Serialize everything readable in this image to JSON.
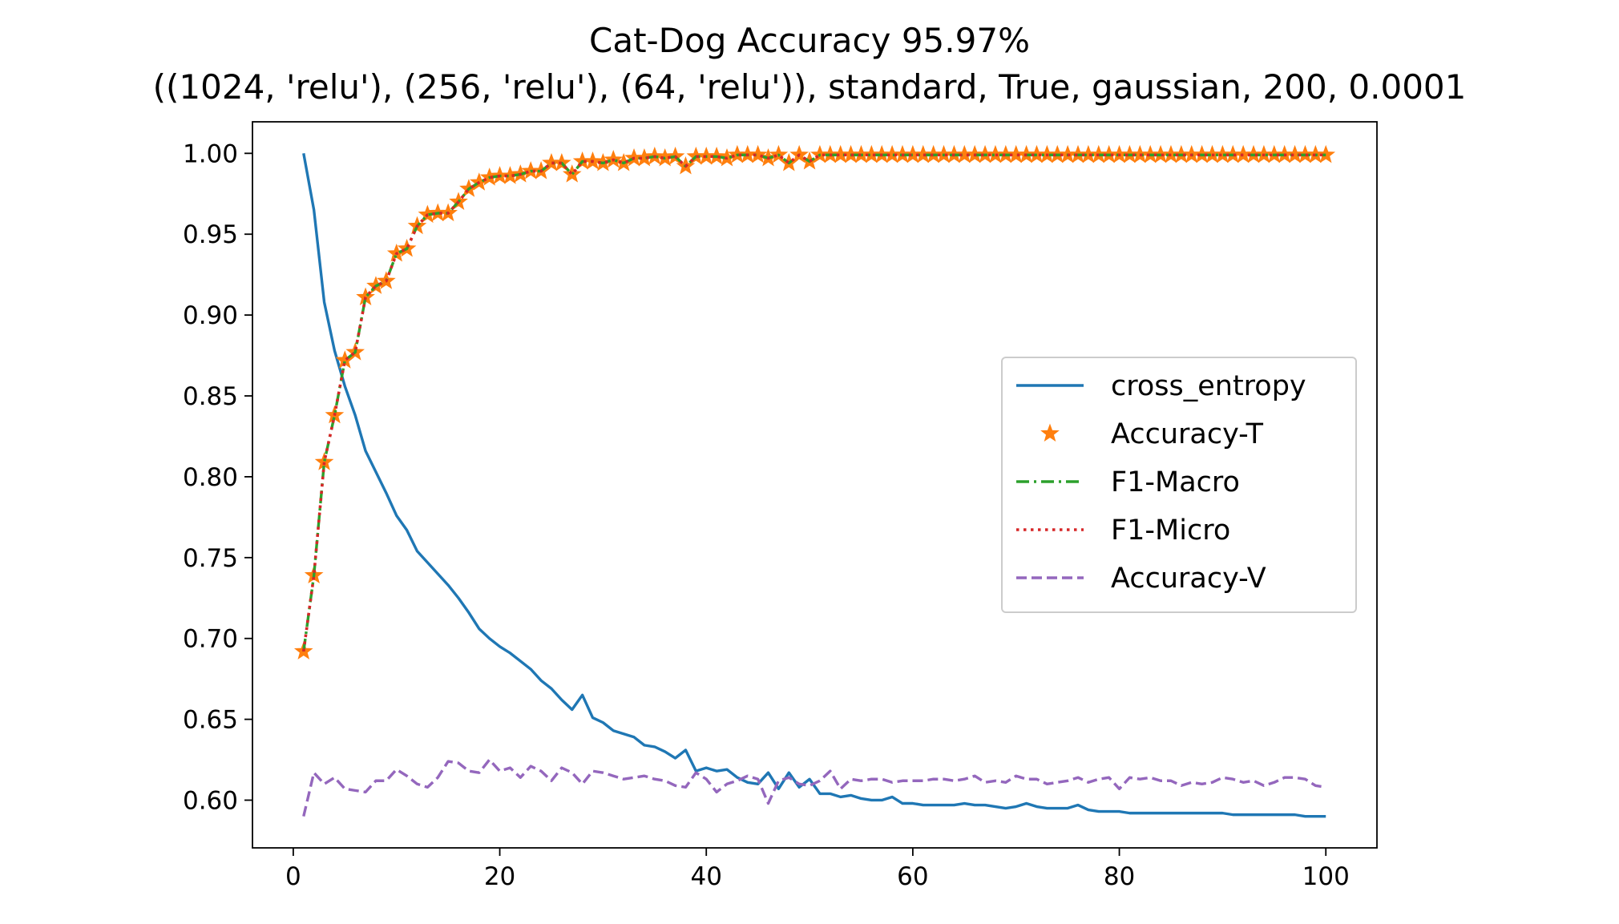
{
  "chart_data": {
    "type": "line",
    "title": "Cat-Dog Accuracy 95.97%",
    "subtitle": "((1024, 'relu'), (256, 'relu'), (64, 'relu')), standard, True, gaussian, 200, 0.0001",
    "xlabel": "",
    "ylabel": "",
    "xlim": [
      -3.95,
      104.95
    ],
    "ylim": [
      0.5705,
      1.0195
    ],
    "xticks": [
      0,
      20,
      40,
      60,
      80,
      100
    ],
    "yticks": [
      0.6,
      0.65,
      0.7,
      0.75,
      0.8,
      0.85,
      0.9,
      0.95,
      1.0
    ],
    "grid": false,
    "legend_position": "center-right",
    "colors": {
      "cross_entropy": "#1f77b4",
      "accuracy_t": "#ff7f0e",
      "f1_macro": "#2ca02c",
      "f1_micro": "#d62728",
      "accuracy_v": "#9467bd"
    },
    "series": [
      {
        "name": "cross_entropy",
        "values": [
          1.0,
          0.965,
          0.908,
          0.878,
          0.856,
          0.838,
          0.816,
          0.803,
          0.79,
          0.776,
          0.767,
          0.754,
          0.747,
          0.74,
          0.733,
          0.725,
          0.716,
          0.706,
          0.7,
          0.695,
          0.691,
          0.686,
          0.681,
          0.674,
          0.669,
          0.662,
          0.656,
          0.665,
          0.651,
          0.648,
          0.643,
          0.641,
          0.639,
          0.634,
          0.633,
          0.63,
          0.626,
          0.631,
          0.618,
          0.62,
          0.618,
          0.619,
          0.614,
          0.611,
          0.61,
          0.617,
          0.607,
          0.617,
          0.608,
          0.613,
          0.604,
          0.604,
          0.602,
          0.603,
          0.601,
          0.6,
          0.6,
          0.602,
          0.598,
          0.598,
          0.597,
          0.597,
          0.597,
          0.597,
          0.598,
          0.597,
          0.597,
          0.596,
          0.595,
          0.596,
          0.598,
          0.596,
          0.595,
          0.595,
          0.595,
          0.597,
          0.594,
          0.593,
          0.593,
          0.593,
          0.592,
          0.592,
          0.592,
          0.592,
          0.592,
          0.592,
          0.592,
          0.592,
          0.592,
          0.592,
          0.591,
          0.591,
          0.591,
          0.591,
          0.591,
          0.591,
          0.591,
          0.59,
          0.59,
          0.59
        ]
      },
      {
        "name": "Accuracy-T",
        "values": [
          0.692,
          0.739,
          0.809,
          0.838,
          0.872,
          0.877,
          0.911,
          0.918,
          0.921,
          0.938,
          0.941,
          0.955,
          0.962,
          0.963,
          0.963,
          0.97,
          0.978,
          0.982,
          0.985,
          0.986,
          0.986,
          0.987,
          0.989,
          0.989,
          0.994,
          0.994,
          0.987,
          0.995,
          0.995,
          0.994,
          0.996,
          0.994,
          0.997,
          0.997,
          0.998,
          0.997,
          0.998,
          0.992,
          0.998,
          0.998,
          0.998,
          0.997,
          0.999,
          0.999,
          0.999,
          0.997,
          0.999,
          0.994,
          0.999,
          0.995,
          0.999,
          0.999,
          0.999,
          0.999,
          0.999,
          0.999,
          0.999,
          0.999,
          0.999,
          0.999,
          0.999,
          0.999,
          0.999,
          0.999,
          0.999,
          0.999,
          0.999,
          0.999,
          0.999,
          0.999,
          0.999,
          0.999,
          0.999,
          0.999,
          0.999,
          0.999,
          0.999,
          0.999,
          0.999,
          0.999,
          0.999,
          0.999,
          0.999,
          0.999,
          0.999,
          0.999,
          0.999,
          0.999,
          0.999,
          0.999,
          0.999,
          0.999,
          0.999,
          0.999,
          0.999,
          0.999,
          0.999,
          0.999,
          0.999,
          0.999
        ]
      },
      {
        "name": "F1-Macro",
        "values": [
          0.692,
          0.739,
          0.809,
          0.838,
          0.872,
          0.877,
          0.911,
          0.918,
          0.921,
          0.938,
          0.941,
          0.955,
          0.962,
          0.963,
          0.963,
          0.97,
          0.978,
          0.982,
          0.985,
          0.986,
          0.986,
          0.987,
          0.989,
          0.989,
          0.994,
          0.994,
          0.987,
          0.995,
          0.995,
          0.994,
          0.996,
          0.994,
          0.997,
          0.997,
          0.998,
          0.997,
          0.998,
          0.992,
          0.998,
          0.998,
          0.998,
          0.997,
          0.999,
          0.999,
          0.999,
          0.997,
          0.999,
          0.994,
          0.999,
          0.995,
          0.999,
          0.999,
          0.999,
          0.999,
          0.999,
          0.999,
          0.999,
          0.999,
          0.999,
          0.999,
          0.999,
          0.999,
          0.999,
          0.999,
          0.999,
          0.999,
          0.999,
          0.999,
          0.999,
          0.999,
          0.999,
          0.999,
          0.999,
          0.999,
          0.999,
          0.999,
          0.999,
          0.999,
          0.999,
          0.999,
          0.999,
          0.999,
          0.999,
          0.999,
          0.999,
          0.999,
          0.999,
          0.999,
          0.999,
          0.999,
          0.999,
          0.999,
          0.999,
          0.999,
          0.999,
          0.999,
          0.999,
          0.999,
          0.999,
          0.999
        ]
      },
      {
        "name": "F1-Micro",
        "values": [
          0.692,
          0.739,
          0.809,
          0.838,
          0.872,
          0.877,
          0.911,
          0.918,
          0.921,
          0.938,
          0.941,
          0.955,
          0.962,
          0.963,
          0.963,
          0.97,
          0.978,
          0.982,
          0.985,
          0.986,
          0.986,
          0.987,
          0.989,
          0.989,
          0.994,
          0.994,
          0.987,
          0.995,
          0.995,
          0.994,
          0.996,
          0.994,
          0.997,
          0.997,
          0.998,
          0.997,
          0.998,
          0.992,
          0.998,
          0.998,
          0.998,
          0.997,
          0.999,
          0.999,
          0.999,
          0.997,
          0.999,
          0.994,
          0.999,
          0.995,
          0.999,
          0.999,
          0.999,
          0.999,
          0.999,
          0.999,
          0.999,
          0.999,
          0.999,
          0.999,
          0.999,
          0.999,
          0.999,
          0.999,
          0.999,
          0.999,
          0.999,
          0.999,
          0.999,
          0.999,
          0.999,
          0.999,
          0.999,
          0.999,
          0.999,
          0.999,
          0.999,
          0.999,
          0.999,
          0.999,
          0.999,
          0.999,
          0.999,
          0.999,
          0.999,
          0.999,
          0.999,
          0.999,
          0.999,
          0.999,
          0.999,
          0.999,
          0.999,
          0.999,
          0.999,
          0.999,
          0.999,
          0.999,
          0.999,
          0.999
        ]
      },
      {
        "name": "Accuracy-V",
        "values": [
          0.59,
          0.617,
          0.61,
          0.614,
          0.607,
          0.606,
          0.605,
          0.612,
          0.612,
          0.619,
          0.615,
          0.61,
          0.608,
          0.614,
          0.624,
          0.623,
          0.618,
          0.617,
          0.625,
          0.618,
          0.62,
          0.614,
          0.621,
          0.618,
          0.612,
          0.62,
          0.617,
          0.61,
          0.618,
          0.617,
          0.615,
          0.613,
          0.614,
          0.615,
          0.613,
          0.612,
          0.609,
          0.608,
          0.617,
          0.613,
          0.605,
          0.61,
          0.612,
          0.615,
          0.613,
          0.598,
          0.612,
          0.614,
          0.61,
          0.609,
          0.612,
          0.618,
          0.607,
          0.613,
          0.612,
          0.613,
          0.613,
          0.611,
          0.612,
          0.612,
          0.612,
          0.613,
          0.613,
          0.612,
          0.613,
          0.615,
          0.611,
          0.612,
          0.611,
          0.615,
          0.613,
          0.613,
          0.61,
          0.611,
          0.612,
          0.614,
          0.611,
          0.613,
          0.614,
          0.607,
          0.614,
          0.613,
          0.614,
          0.612,
          0.612,
          0.609,
          0.611,
          0.61,
          0.611,
          0.614,
          0.613,
          0.611,
          0.612,
          0.609,
          0.611,
          0.614,
          0.614,
          0.613,
          0.609,
          0.608
        ]
      }
    ]
  }
}
